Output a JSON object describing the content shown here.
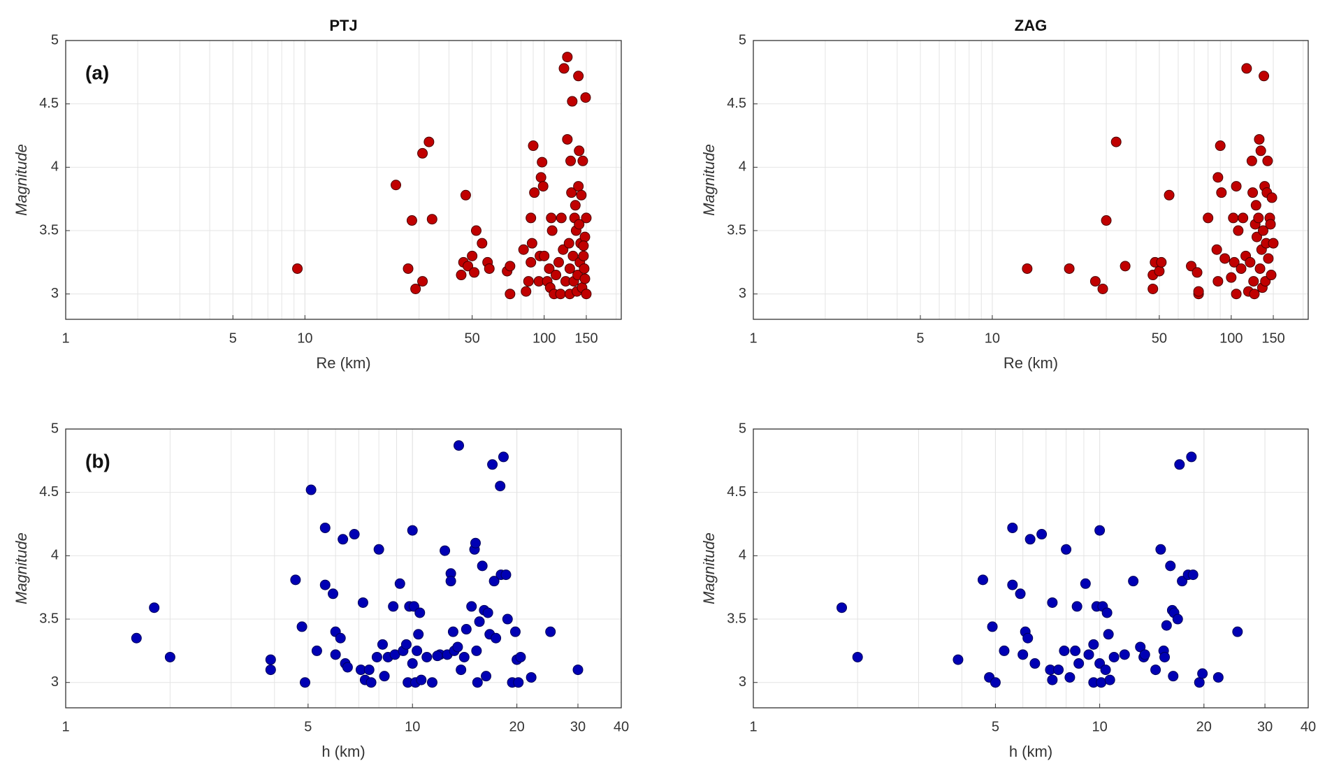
{
  "chart_data": [
    {
      "type": "scatter",
      "title": "PTJ",
      "annotation": "(a)",
      "xlabel": "Re (km)",
      "ylabel": "Magnitude",
      "log_x": true,
      "grid": true,
      "xlim": [
        1,
        210
      ],
      "xticks": [
        1,
        5,
        10,
        50,
        100,
        150
      ],
      "ylim": [
        2.8,
        5
      ],
      "yticks": [
        3,
        3.5,
        4,
        4.5,
        5
      ],
      "series": [
        {
          "color": "#c00000",
          "edgecolor": "#4a0000",
          "x": [
            9.3,
            24,
            27,
            28,
            29,
            31,
            31,
            33,
            34,
            45,
            46,
            47,
            48,
            50,
            51,
            52,
            55,
            58,
            59,
            70,
            72,
            72,
            82,
            84,
            86,
            88,
            88,
            89,
            90,
            91,
            95,
            96,
            97,
            98,
            99,
            100,
            103,
            105,
            106,
            107,
            108,
            110,
            112,
            115,
            117,
            118,
            120,
            121,
            123,
            125,
            125,
            127,
            128,
            128,
            129,
            130,
            131,
            132,
            133,
            134,
            135,
            136,
            137,
            138,
            139,
            139,
            140,
            140,
            141,
            142,
            143,
            144,
            145,
            146,
            147,
            148,
            149,
            150,
            150,
            148,
            146
          ],
          "y": [
            3.2,
            3.86,
            3.2,
            3.58,
            3.04,
            4.11,
            3.1,
            4.2,
            3.59,
            3.15,
            3.25,
            3.78,
            3.22,
            3.3,
            3.17,
            3.5,
            3.4,
            3.25,
            3.2,
            3.18,
            3.22,
            3,
            3.35,
            3.02,
            3.1,
            3.6,
            3.25,
            3.4,
            4.17,
            3.8,
            3.1,
            3.3,
            3.92,
            4.04,
            3.85,
            3.3,
            3.1,
            3.2,
            3.05,
            3.6,
            3.5,
            3,
            3.15,
            3.25,
            3,
            3.6,
            3.35,
            4.78,
            3.1,
            4.87,
            4.22,
            3.4,
            3.2,
            3,
            4.05,
            3.8,
            4.52,
            3.3,
            3.1,
            3.6,
            3.7,
            3.5,
            3.02,
            3.15,
            4.72,
            3.85,
            4.13,
            3.55,
            3.25,
            3.4,
            3.78,
            3.05,
            4.05,
            3.3,
            3.2,
            3.45,
            4.55,
            3.6,
            3,
            3.12,
            3.38
          ]
        }
      ]
    },
    {
      "type": "scatter",
      "title": "ZAG",
      "xlabel": "Re (km)",
      "ylabel": "Magnitude",
      "log_x": true,
      "grid": true,
      "xlim": [
        1,
        210
      ],
      "xticks": [
        1,
        5,
        10,
        50,
        100,
        150
      ],
      "ylim": [
        2.8,
        5
      ],
      "yticks": [
        3,
        3.5,
        4,
        4.5,
        5
      ],
      "series": [
        {
          "color": "#c00000",
          "edgecolor": "#4a0000",
          "x": [
            14,
            21,
            27,
            29,
            30,
            33,
            36,
            47,
            47,
            48,
            50,
            51,
            55,
            68,
            72,
            73,
            73,
            80,
            87,
            88,
            88,
            90,
            91,
            94,
            100,
            102,
            103,
            105,
            105,
            107,
            110,
            112,
            115,
            116,
            118,
            120,
            122,
            123,
            124,
            125,
            126,
            127,
            128,
            130,
            131,
            132,
            133,
            134,
            135,
            136,
            137,
            138,
            139,
            140,
            141,
            142,
            143,
            145,
            146,
            147,
            148,
            150
          ],
          "y": [
            3.2,
            3.2,
            3.1,
            3.04,
            3.58,
            4.2,
            3.22,
            3.04,
            3.15,
            3.25,
            3.18,
            3.25,
            3.78,
            3.22,
            3.17,
            3,
            3.02,
            3.6,
            3.35,
            3.92,
            3.1,
            4.17,
            3.8,
            3.28,
            3.13,
            3.6,
            3.25,
            3.85,
            3,
            3.5,
            3.2,
            3.6,
            3.3,
            4.78,
            3.02,
            3.25,
            4.05,
            3.8,
            3.1,
            3,
            3.55,
            3.7,
            3.45,
            3.6,
            4.22,
            3.2,
            4.13,
            3.35,
            3.05,
            3.5,
            4.72,
            3.85,
            3.1,
            3.4,
            3.8,
            4.05,
            3.28,
            3.6,
            3.55,
            3.15,
            3.76,
            3.4
          ]
        }
      ]
    },
    {
      "type": "scatter",
      "annotation": "(b)",
      "xlabel": "h (km)",
      "ylabel": "Magnitude",
      "log_x": true,
      "grid": true,
      "xlim": [
        1,
        40
      ],
      "xticks": [
        1,
        5,
        10,
        20,
        30,
        40
      ],
      "ylim": [
        2.8,
        5
      ],
      "yticks": [
        3,
        3.5,
        4,
        4.5,
        5
      ],
      "series": [
        {
          "color": "#0000b4",
          "edgecolor": "#00005a",
          "x": [
            1.6,
            1.8,
            2,
            3.9,
            3.9,
            4.6,
            4.8,
            4.9,
            5.1,
            5.3,
            5.6,
            5.6,
            5.9,
            6,
            6,
            6.2,
            6.3,
            6.4,
            6.8,
            7.1,
            7.2,
            7.3,
            7.5,
            7.6,
            7.9,
            8,
            8.2,
            8.3,
            8.5,
            8.8,
            8.9,
            9.2,
            9.4,
            9.6,
            9.7,
            9.8,
            10,
            10,
            10.1,
            10.2,
            10.3,
            10.4,
            10.5,
            10.6,
            11,
            11.4,
            12,
            12.4,
            12.6,
            12.9,
            12.9,
            13.1,
            13.2,
            13.5,
            13.6,
            13.8,
            14.1,
            14.3,
            14.8,
            15.1,
            15.2,
            15.3,
            15.4,
            15.6,
            15.9,
            16.1,
            16.3,
            16.5,
            16.7,
            17,
            17.2,
            17.4,
            17.9,
            18,
            18.3,
            18.6,
            18.8,
            19.4,
            19.8,
            20,
            20.2,
            20.5,
            22,
            25,
            30,
            6.5,
            11.8
          ],
          "y": [
            3.35,
            3.59,
            3.2,
            3.18,
            3.1,
            3.81,
            3.44,
            3,
            4.52,
            3.25,
            4.22,
            3.77,
            3.7,
            3.4,
            3.22,
            3.35,
            4.13,
            3.15,
            4.17,
            3.1,
            3.63,
            3.02,
            3.1,
            3,
            3.2,
            4.05,
            3.3,
            3.05,
            3.2,
            3.6,
            3.22,
            3.78,
            3.25,
            3.3,
            3,
            3.6,
            3.15,
            4.2,
            3.6,
            3,
            3.25,
            3.38,
            3.55,
            3.02,
            3.2,
            3,
            3.22,
            4.04,
            3.22,
            3.86,
            3.8,
            3.4,
            3.25,
            3.28,
            4.87,
            3.1,
            3.2,
            3.42,
            3.6,
            4.05,
            4.1,
            3.25,
            3,
            3.48,
            3.92,
            3.57,
            3.05,
            3.55,
            3.38,
            4.72,
            3.8,
            3.35,
            4.55,
            3.85,
            4.78,
            3.85,
            3.5,
            3,
            3.4,
            3.18,
            3,
            3.2,
            3.04,
            3.4,
            3.1,
            3.12,
            3.21
          ]
        }
      ]
    },
    {
      "type": "scatter",
      "xlabel": "h (km)",
      "ylabel": "Magnitude",
      "log_x": true,
      "grid": true,
      "xlim": [
        1,
        40
      ],
      "xticks": [
        1,
        5,
        10,
        20,
        30,
        40
      ],
      "ylim": [
        2.8,
        5
      ],
      "yticks": [
        3,
        3.5,
        4,
        4.5,
        5
      ],
      "series": [
        {
          "color": "#0000b4",
          "edgecolor": "#00005a",
          "x": [
            1.8,
            2,
            3.9,
            4.6,
            4.8,
            4.9,
            5,
            5.3,
            5.6,
            5.6,
            5.9,
            6.1,
            6,
            6.2,
            6.3,
            6.5,
            6.8,
            7.2,
            7.3,
            7.3,
            7.6,
            7.9,
            8,
            8.2,
            8.5,
            8.6,
            8.7,
            9.1,
            9.3,
            9.6,
            9.6,
            9.8,
            10,
            10,
            10.1,
            10.2,
            10.4,
            10.5,
            10.6,
            10.7,
            11,
            11.8,
            12.5,
            13.1,
            13.4,
            13.5,
            14.5,
            15,
            15.3,
            15.4,
            15.6,
            16,
            16.2,
            16.3,
            16.4,
            16.8,
            17,
            17.3,
            18,
            18.4,
            18.6,
            19.4,
            19.8,
            22,
            25
          ],
          "y": [
            3.59,
            3.2,
            3.18,
            3.81,
            3.04,
            3.44,
            3,
            3.25,
            4.22,
            3.77,
            3.7,
            3.4,
            3.22,
            3.35,
            4.13,
            3.15,
            4.17,
            3.1,
            3.63,
            3.02,
            3.1,
            3.25,
            4.05,
            3.04,
            3.25,
            3.6,
            3.15,
            3.78,
            3.22,
            3.3,
            3,
            3.6,
            3.15,
            4.2,
            3,
            3.6,
            3.1,
            3.55,
            3.38,
            3.02,
            3.2,
            3.22,
            3.8,
            3.28,
            3.2,
            3.22,
            3.1,
            4.05,
            3.25,
            3.2,
            3.45,
            3.92,
            3.57,
            3.05,
            3.55,
            3.5,
            4.72,
            3.8,
            3.85,
            4.78,
            3.85,
            3,
            3.07,
            3.04,
            3.4
          ]
        }
      ]
    }
  ]
}
